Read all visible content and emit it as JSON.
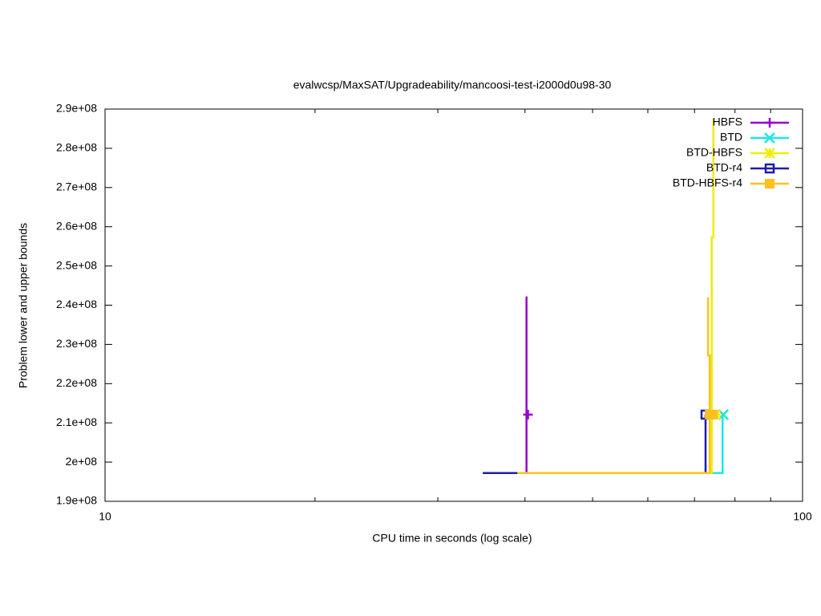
{
  "chart_data": {
    "type": "line",
    "title": "evalwcsp/MaxSAT/Upgradeability/mancoosi-test-i2000d0u98-30",
    "x_label": "CPU time in seconds (log scale)",
    "y_label": "Problem lower and upper bounds",
    "xscale": "log",
    "xlim": [
      10,
      100
    ],
    "xticks": [
      10,
      100
    ],
    "xminorticks": [
      20,
      30,
      40,
      50,
      60,
      70,
      80,
      90
    ],
    "ylim": [
      190000000,
      290000000
    ],
    "yticks": [
      {
        "value": 190000000,
        "label": "1.9e+08"
      },
      {
        "value": 200000000,
        "label": "2e+08"
      },
      {
        "value": 210000000,
        "label": "2.1e+08"
      },
      {
        "value": 220000000,
        "label": "2.2e+08"
      },
      {
        "value": 230000000,
        "label": "2.3e+08"
      },
      {
        "value": 240000000,
        "label": "2.4e+08"
      },
      {
        "value": 250000000,
        "label": "2.5e+08"
      },
      {
        "value": 260000000,
        "label": "2.6e+08"
      },
      {
        "value": 270000000,
        "label": "2.7e+08"
      },
      {
        "value": 280000000,
        "label": "2.8e+08"
      },
      {
        "value": 290000000,
        "label": "2.9e+08"
      }
    ],
    "grid": false,
    "legend": "top-right",
    "series": [
      {
        "name": "HBFS",
        "color": "#9400d3",
        "marker": "plus",
        "x": [
          40.1,
          40.2,
          40.2,
          40.2,
          74.1
        ],
        "values": [
          242000000,
          242000000,
          227200000,
          197200000,
          197200000
        ],
        "marker_x": [
          40.4
        ],
        "marker_y": [
          212100000
        ]
      },
      {
        "name": "BTD",
        "color": "#1ee6e6",
        "marker": "cross",
        "x": [
          34.8,
          76.8,
          76.8
        ],
        "values": [
          197200000,
          197200000,
          212100000
        ],
        "marker_x": [
          77.0
        ],
        "marker_y": [
          212100000
        ]
      },
      {
        "name": "BTD-HBFS",
        "color": "#eeee00",
        "marker": "star",
        "x": [
          34.8,
          74.1,
          74.1,
          74.5,
          74.5
        ],
        "values": [
          197200000,
          197200000,
          257300000,
          257300000,
          287500000
        ],
        "marker_x": [
          75.1
        ],
        "marker_y": [
          212100000
        ]
      },
      {
        "name": "BTD-r4",
        "color": "#1c1cb0",
        "marker": "square-open",
        "x": [
          34.8,
          72.6,
          72.6
        ],
        "values": [
          197200000,
          197200000,
          212100000
        ],
        "marker_x": [
          72.6
        ],
        "marker_y": [
          212100000
        ]
      },
      {
        "name": "BTD-HBFS-r4",
        "color": "#ffc020",
        "marker": "square-filled",
        "x": [
          39.0,
          73.6,
          73.6,
          73.2,
          73.2
        ],
        "values": [
          197200000,
          197200000,
          227200000,
          227200000,
          242000000
        ],
        "marker_x": [
          73.6,
          74.4
        ],
        "marker_y": [
          212100000,
          212100000
        ]
      }
    ]
  }
}
